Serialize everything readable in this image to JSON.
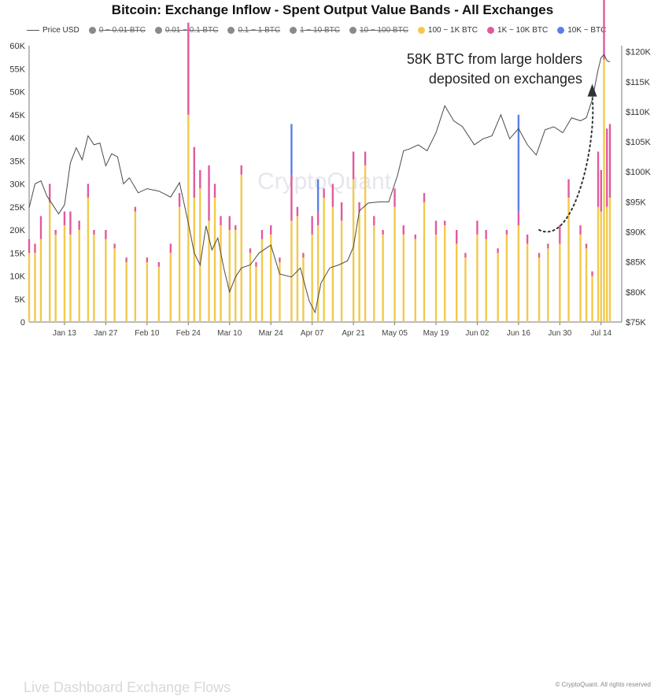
{
  "chart_data": {
    "type": "bar",
    "title": "Bitcoin: Exchange Inflow - Spent Output Value Bands - All Exchanges",
    "watermark": "CryptoQuant",
    "copyright": "© CryptoQuant. All rights reserved",
    "faded_caption": "Live Dashboard Exchange Flows",
    "legend": [
      {
        "label": "Price USD",
        "kind": "line",
        "color": "#555555",
        "enabled": true
      },
      {
        "label": "0 ~ 0.01 BTC",
        "kind": "dot",
        "color": "#8a8a8a",
        "enabled": false
      },
      {
        "label": "0.01 ~ 0.1 BTC",
        "kind": "dot",
        "color": "#8a8a8a",
        "enabled": false
      },
      {
        "label": "0.1 ~ 1 BTC",
        "kind": "dot",
        "color": "#8a8a8a",
        "enabled": false
      },
      {
        "label": "1 ~ 10 BTC",
        "kind": "dot",
        "color": "#8a8a8a",
        "enabled": false
      },
      {
        "label": "10 ~ 100 BTC",
        "kind": "dot",
        "color": "#8a8a8a",
        "enabled": false
      },
      {
        "label": "100 ~ 1K BTC",
        "kind": "dot",
        "color": "#f2c94c",
        "enabled": true
      },
      {
        "label": "1K ~ 10K BTC",
        "kind": "dot",
        "color": "#e05a9e",
        "enabled": true
      },
      {
        "label": "10K ~ BTC",
        "kind": "dot",
        "color": "#5b7fe8",
        "enabled": true
      }
    ],
    "left_axis": {
      "min": 0,
      "max": 60000,
      "ticks": [
        0,
        5000,
        10000,
        15000,
        20000,
        25000,
        30000,
        35000,
        40000,
        45000,
        50000,
        55000,
        60000
      ],
      "tick_labels": [
        "0",
        "5K",
        "10K",
        "15K",
        "20K",
        "25K",
        "30K",
        "35K",
        "40K",
        "45K",
        "50K",
        "55K",
        "60K"
      ]
    },
    "right_axis": {
      "min": 75000,
      "max": 121000,
      "ticks": [
        75000,
        80000,
        85000,
        90000,
        95000,
        100000,
        105000,
        110000,
        115000,
        120000
      ],
      "tick_labels": [
        "$75K",
        "$80K",
        "$85K",
        "$90K",
        "$95K",
        "$100K",
        "$105K",
        "$110K",
        "$115K",
        "$120K"
      ]
    },
    "x_axis": {
      "start_date": "2025-01-01",
      "end_date": "2025-07-21",
      "ticks": [
        "2025-01-13",
        "2025-01-27",
        "2025-02-10",
        "2025-02-24",
        "2025-03-10",
        "2025-03-24",
        "2025-04-07",
        "2025-04-21",
        "2025-05-05",
        "2025-05-19",
        "2025-06-02",
        "2025-06-16",
        "2025-06-30",
        "2025-07-14"
      ],
      "tick_labels": [
        "Jan 13",
        "Jan 27",
        "Feb 10",
        "Feb 24",
        "Mar 10",
        "Mar 24",
        "Apr 07",
        "Apr 21",
        "May 05",
        "May 19",
        "Jun 02",
        "Jun 16",
        "Jun 30",
        "Jul 14"
      ]
    },
    "grid": false,
    "legend_placement": "top",
    "series": [
      {
        "name": "100 ~ 1K BTC",
        "color": "#f2c94c",
        "stacked": true
      },
      {
        "name": "1K ~ 10K BTC",
        "color": "#e05a9e",
        "stacked": true
      },
      {
        "name": "10K ~ BTC",
        "color": "#5b7fe8",
        "stacked": true
      }
    ],
    "bar_dates": [
      "2025-01-01",
      "2025-01-03",
      "2025-01-05",
      "2025-01-08",
      "2025-01-10",
      "2025-01-13",
      "2025-01-15",
      "2025-01-18",
      "2025-01-21",
      "2025-01-23",
      "2025-01-27",
      "2025-01-30",
      "2025-02-03",
      "2025-02-06",
      "2025-02-10",
      "2025-02-14",
      "2025-02-18",
      "2025-02-21",
      "2025-02-24",
      "2025-02-26",
      "2025-02-28",
      "2025-03-03",
      "2025-03-05",
      "2025-03-07",
      "2025-03-10",
      "2025-03-12",
      "2025-03-14",
      "2025-03-17",
      "2025-03-19",
      "2025-03-21",
      "2025-03-24",
      "2025-03-27",
      "2025-03-31",
      "2025-04-02",
      "2025-04-04",
      "2025-04-07",
      "2025-04-09",
      "2025-04-11",
      "2025-04-14",
      "2025-04-17",
      "2025-04-21",
      "2025-04-23",
      "2025-04-25",
      "2025-04-28",
      "2025-05-01",
      "2025-05-05",
      "2025-05-08",
      "2025-05-12",
      "2025-05-15",
      "2025-05-19",
      "2025-05-22",
      "2025-05-26",
      "2025-05-29",
      "2025-06-02",
      "2025-06-05",
      "2025-06-09",
      "2025-06-12",
      "2025-06-16",
      "2025-06-19",
      "2025-06-23",
      "2025-06-26",
      "2025-06-30",
      "2025-07-03",
      "2025-07-07",
      "2025-07-09",
      "2025-07-11",
      "2025-07-13",
      "2025-07-14",
      "2025-07-15",
      "2025-07-16",
      "2025-07-17"
    ],
    "bar_values": {
      "100 ~ 1K BTC": [
        15000,
        15000,
        18000,
        26000,
        19000,
        21000,
        19000,
        20000,
        27000,
        19000,
        18000,
        16000,
        13000,
        24000,
        13000,
        12000,
        15000,
        25000,
        45000,
        27000,
        29000,
        22000,
        27000,
        21000,
        20000,
        20000,
        32000,
        15000,
        12000,
        18000,
        19000,
        13000,
        22000,
        23000,
        14000,
        19000,
        21000,
        27000,
        25000,
        22000,
        31000,
        24000,
        34000,
        21000,
        19000,
        25000,
        19000,
        18000,
        26000,
        19000,
        21000,
        17000,
        14000,
        19000,
        18000,
        15000,
        19000,
        21000,
        17000,
        14000,
        16000,
        17000,
        27000,
        19000,
        16000,
        10000,
        25000,
        24000,
        57000,
        25000,
        27000
      ],
      "1K ~ 10K BTC": [
        3000,
        2000,
        5000,
        4000,
        1000,
        3000,
        5000,
        2000,
        3000,
        1000,
        2000,
        1000,
        1000,
        1000,
        1000,
        1000,
        2000,
        3000,
        20000,
        11000,
        4000,
        12000,
        3000,
        2000,
        3000,
        1000,
        2000,
        1000,
        1000,
        2000,
        2000,
        1000,
        10000,
        2000,
        1000,
        4000,
        3000,
        2000,
        5000,
        4000,
        6000,
        2000,
        3000,
        2000,
        1000,
        4000,
        2000,
        1000,
        2000,
        3000,
        1000,
        3000,
        1000,
        3000,
        2000,
        1000,
        1000,
        3000,
        2000,
        1000,
        1000,
        4000,
        4000,
        2000,
        1000,
        1000,
        12000,
        9000,
        34000,
        17000,
        16000
      ],
      "10K ~ BTC": [
        0,
        0,
        0,
        0,
        0,
        0,
        0,
        0,
        0,
        0,
        0,
        0,
        0,
        0,
        0,
        0,
        0,
        0,
        0,
        0,
        0,
        0,
        0,
        0,
        0,
        0,
        0,
        0,
        0,
        0,
        0,
        0,
        11000,
        0,
        0,
        0,
        7000,
        0,
        0,
        0,
        0,
        0,
        0,
        0,
        0,
        0,
        0,
        0,
        0,
        0,
        0,
        0,
        0,
        0,
        0,
        0,
        0,
        21000,
        0,
        0,
        0,
        0,
        0,
        0,
        0,
        0,
        0,
        0,
        0,
        0,
        0
      ]
    },
    "price_series": {
      "name": "Price USD",
      "dates": [
        "2025-01-01",
        "2025-01-03",
        "2025-01-05",
        "2025-01-07",
        "2025-01-09",
        "2025-01-11",
        "2025-01-13",
        "2025-01-15",
        "2025-01-17",
        "2025-01-19",
        "2025-01-21",
        "2025-01-23",
        "2025-01-25",
        "2025-01-27",
        "2025-01-29",
        "2025-01-31",
        "2025-02-02",
        "2025-02-04",
        "2025-02-07",
        "2025-02-10",
        "2025-02-14",
        "2025-02-18",
        "2025-02-21",
        "2025-02-24",
        "2025-02-26",
        "2025-02-28",
        "2025-03-02",
        "2025-03-04",
        "2025-03-06",
        "2025-03-08",
        "2025-03-10",
        "2025-03-12",
        "2025-03-14",
        "2025-03-17",
        "2025-03-20",
        "2025-03-24",
        "2025-03-27",
        "2025-03-31",
        "2025-04-03",
        "2025-04-06",
        "2025-04-08",
        "2025-04-10",
        "2025-04-13",
        "2025-04-16",
        "2025-04-19",
        "2025-04-21",
        "2025-04-23",
        "2025-04-26",
        "2025-04-30",
        "2025-05-03",
        "2025-05-06",
        "2025-05-08",
        "2025-05-10",
        "2025-05-13",
        "2025-05-16",
        "2025-05-19",
        "2025-05-22",
        "2025-05-25",
        "2025-05-28",
        "2025-06-01",
        "2025-06-04",
        "2025-06-07",
        "2025-06-10",
        "2025-06-13",
        "2025-06-16",
        "2025-06-19",
        "2025-06-22",
        "2025-06-25",
        "2025-06-28",
        "2025-07-01",
        "2025-07-04",
        "2025-07-07",
        "2025-07-09",
        "2025-07-11",
        "2025-07-13",
        "2025-07-14",
        "2025-07-15",
        "2025-07-16",
        "2025-07-17"
      ],
      "values": [
        94000,
        98000,
        98500,
        96000,
        94500,
        93000,
        94500,
        101500,
        104000,
        102000,
        106000,
        104500,
        104800,
        101000,
        103000,
        102500,
        98000,
        99000,
        96500,
        97200,
        96800,
        95800,
        98200,
        91500,
        86500,
        84500,
        91000,
        87000,
        89000,
        84000,
        80000,
        82500,
        84000,
        84500,
        86500,
        87800,
        83000,
        82500,
        84000,
        78500,
        76600,
        81500,
        84000,
        84500,
        85200,
        87500,
        93500,
        94800,
        95000,
        95000,
        99500,
        103500,
        103800,
        104500,
        103500,
        106500,
        111000,
        108500,
        107500,
        104500,
        105500,
        106000,
        109500,
        105500,
        107200,
        104500,
        102800,
        107000,
        107500,
        106500,
        109000,
        108500,
        109000,
        112000,
        117000,
        119000,
        119500,
        118500,
        118300
      ]
    },
    "annotation": {
      "lines": [
        "58K BTC from large holders",
        "deposited on exchanges"
      ],
      "arrow_from_date": "2025-06-23",
      "arrow_from_btc": 20000,
      "arrow_to_date": "2025-07-11",
      "arrow_to_btc": 51000
    }
  }
}
